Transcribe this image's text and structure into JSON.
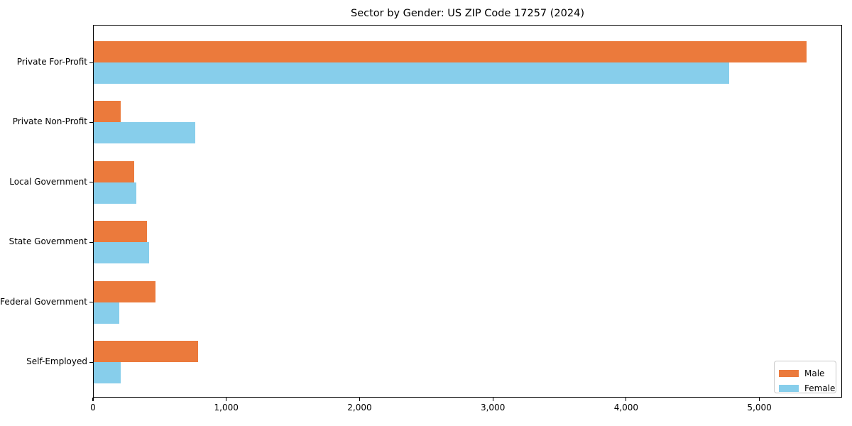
{
  "chart_data": {
    "type": "bar",
    "orientation": "horizontal",
    "title": "Sector by Gender: US ZIP Code 17257 (2024)",
    "categories": [
      "Private For-Profit",
      "Private Non-Profit",
      "Local Government",
      "State Government",
      "Federal Government",
      "Self-Employed"
    ],
    "series": [
      {
        "name": "Male",
        "color": "#EB7A3C",
        "values": [
          5350,
          200,
          305,
          400,
          465,
          785
        ]
      },
      {
        "name": "Female",
        "color": "#87CEEB",
        "values": [
          4770,
          760,
          320,
          415,
          190,
          205
        ]
      }
    ],
    "xlabel": "",
    "ylabel": "",
    "xlim": [
      0,
      5620
    ],
    "xticks": [
      0,
      1000,
      2000,
      3000,
      4000,
      5000
    ],
    "xtick_labels": [
      "0",
      "1,000",
      "2,000",
      "3,000",
      "4,000",
      "5,000"
    ],
    "legend_position": "lower right",
    "grid": false,
    "background_color": "#ffffff",
    "text_color": "#000000"
  }
}
